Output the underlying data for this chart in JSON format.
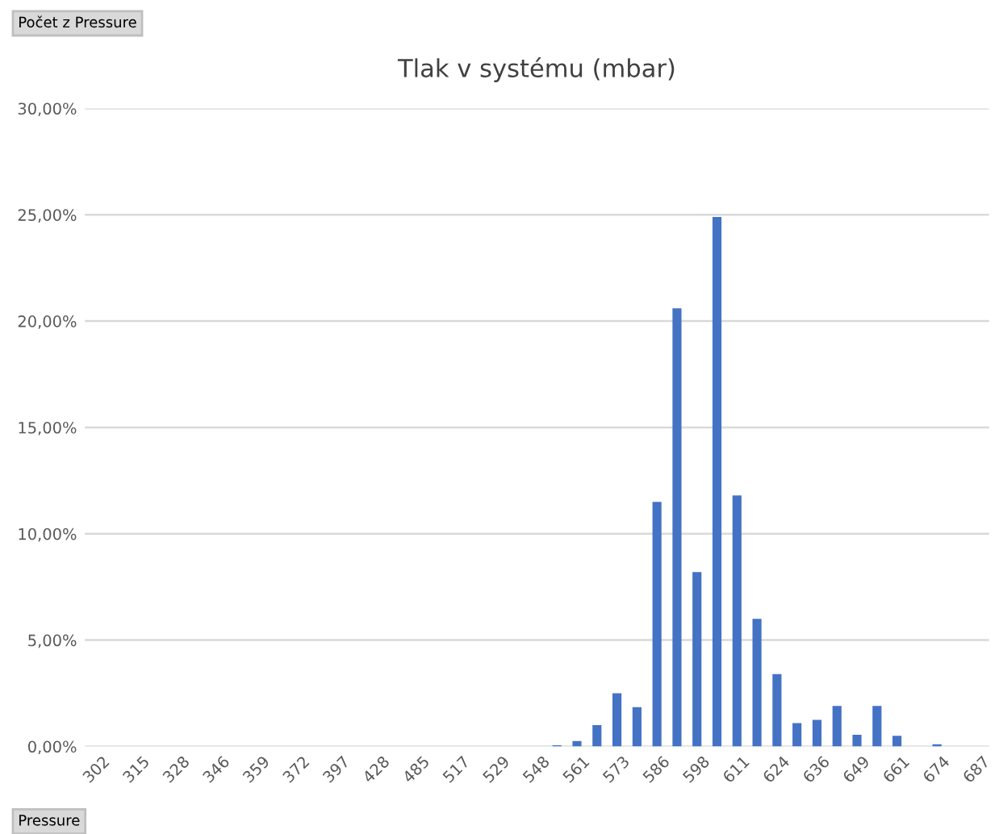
{
  "chart_data": {
    "type": "bar",
    "title": "Tlak v systému (mbar)",
    "categories": [
      "302",
      null,
      "315",
      null,
      "328",
      null,
      "346",
      null,
      "359",
      null,
      "372",
      null,
      "397",
      null,
      "428",
      null,
      "485",
      null,
      "517",
      null,
      "529",
      null,
      "548",
      null,
      "561",
      null,
      "573",
      null,
      "586",
      null,
      "598",
      null,
      "611",
      null,
      "624",
      null,
      "636",
      null,
      "649",
      null,
      "661",
      null,
      "674",
      null,
      "687"
    ],
    "values": [
      0,
      0,
      0,
      0,
      0,
      0,
      0,
      0,
      0,
      0,
      0,
      0,
      0,
      0,
      0,
      0,
      0,
      0,
      0,
      0,
      0,
      0,
      0,
      0.05,
      0.25,
      1.0,
      2.5,
      1.85,
      11.5,
      20.6,
      8.2,
      24.9,
      11.8,
      6.0,
      3.4,
      1.1,
      1.25,
      1.9,
      0.55,
      1.9,
      0.5,
      0,
      0.1,
      0,
      0
    ],
    "color": "#4472c4",
    "ylim": [
      0,
      30
    ],
    "yticks": [
      {
        "value": 0,
        "label": "0,00%"
      },
      {
        "value": 5,
        "label": "5,00%"
      },
      {
        "value": 10,
        "label": "10,00%"
      },
      {
        "value": 15,
        "label": "15,00%"
      },
      {
        "value": 20,
        "label": "20,00%"
      },
      {
        "value": 25,
        "label": "25,00%"
      },
      {
        "value": 30,
        "label": "30,00%"
      }
    ],
    "grid": "y",
    "annotations": [
      "Počet z Pressure",
      "Pressure"
    ]
  }
}
